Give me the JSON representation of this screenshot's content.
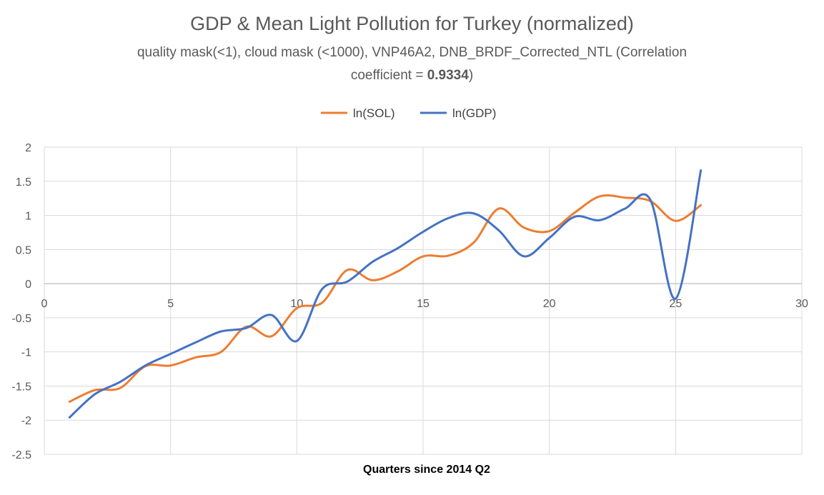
{
  "chart_data": {
    "type": "line",
    "title": "GDP & Mean Light Pollution for Turkey (normalized)",
    "subtitle_line1": "quality mask(<1), cloud mask (<1000), VNP46A2, DNB_BRDF_Corrected_NTL (Correlation",
    "subtitle_line2_prefix": "coefficient = ",
    "subtitle_line2_value": "0.9334",
    "subtitle_line2_suffix": ")",
    "xlabel": "Quarters since 2014 Q2",
    "ylabel": "",
    "xlim": [
      0,
      30
    ],
    "ylim": [
      -2.5,
      2
    ],
    "x_ticks": [
      0,
      5,
      10,
      15,
      20,
      25,
      30
    ],
    "y_ticks": [
      2,
      1.5,
      1,
      0.5,
      0,
      -0.5,
      -1,
      -1.5,
      -2,
      -2.5
    ],
    "x_tick_labels": [
      "0",
      "5",
      "10",
      "15",
      "20",
      "25",
      "30"
    ],
    "y_tick_labels": [
      "2",
      "1.5",
      "1",
      "0.5",
      "0",
      "-0.5",
      "-1",
      "-1.5",
      "-2",
      "-2.5"
    ],
    "grid": true,
    "legend_position": "top",
    "series": [
      {
        "name": "ln(SOL)",
        "color": "#ED7D31",
        "x": [
          1,
          2,
          3,
          4,
          5,
          6,
          7,
          8,
          9,
          10,
          11,
          12,
          13,
          14,
          15,
          16,
          17,
          18,
          19,
          20,
          21,
          22,
          23,
          24,
          25,
          26
        ],
        "y": [
          -1.73,
          -1.56,
          -1.53,
          -1.21,
          -1.2,
          -1.08,
          -1.0,
          -0.63,
          -0.77,
          -0.36,
          -0.28,
          0.2,
          0.05,
          0.18,
          0.4,
          0.41,
          0.6,
          1.1,
          0.82,
          0.77,
          1.04,
          1.28,
          1.26,
          1.21,
          0.92,
          1.15
        ]
      },
      {
        "name": "ln(GDP)",
        "color": "#4472C4",
        "x": [
          1,
          2,
          3,
          4,
          5,
          6,
          7,
          8,
          9,
          10,
          11,
          12,
          13,
          14,
          15,
          16,
          17,
          18,
          19,
          20,
          21,
          22,
          23,
          24,
          25,
          26
        ],
        "y": [
          -1.96,
          -1.62,
          -1.44,
          -1.2,
          -1.03,
          -0.86,
          -0.7,
          -0.65,
          -0.46,
          -0.84,
          -0.08,
          0.03,
          0.32,
          0.52,
          0.76,
          0.96,
          1.03,
          0.78,
          0.4,
          0.67,
          0.98,
          0.93,
          1.1,
          1.23,
          -0.22,
          1.66
        ]
      }
    ]
  }
}
